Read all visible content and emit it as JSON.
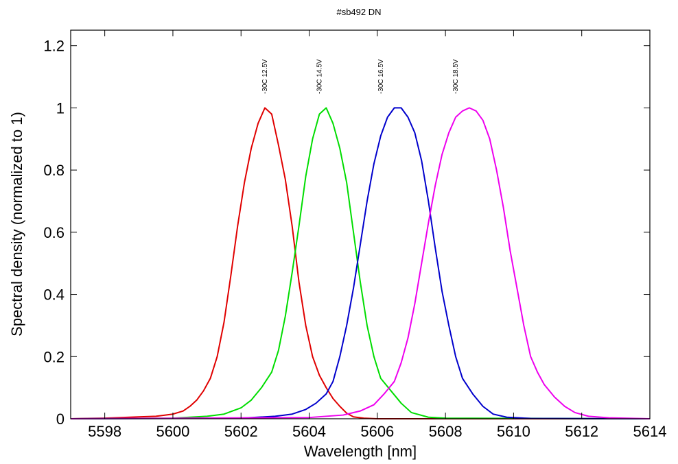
{
  "chart_data": {
    "type": "line",
    "title": "#sb492 DN",
    "xlabel": "Wavelength [nm]",
    "ylabel": "Spectral density (normalized to 1)",
    "xlim": [
      5597,
      5614
    ],
    "ylim": [
      0,
      1.25
    ],
    "xticks": [
      {
        "value": 5598,
        "label": "5598"
      },
      {
        "value": 5600,
        "label": "5600"
      },
      {
        "value": 5602,
        "label": "5602"
      },
      {
        "value": 5604,
        "label": "5604"
      },
      {
        "value": 5606,
        "label": "5606"
      },
      {
        "value": 5608,
        "label": "5608"
      },
      {
        "value": 5610,
        "label": "5610"
      },
      {
        "value": 5612,
        "label": "5612"
      },
      {
        "value": 5614,
        "label": "5614"
      }
    ],
    "yticks": [
      {
        "value": 0,
        "label": "0"
      },
      {
        "value": 0.2,
        "label": "0.2"
      },
      {
        "value": 0.4,
        "label": "0.4"
      },
      {
        "value": 0.6,
        "label": "0.6"
      },
      {
        "value": 0.8,
        "label": "0.8"
      },
      {
        "value": 1.0,
        "label": "1"
      },
      {
        "value": 1.2,
        "label": "1.2"
      }
    ],
    "grid": false,
    "series": [
      {
        "name": "-30C 12.5V",
        "color": "#e00000",
        "label_x": 5602.7,
        "points": [
          [
            5597,
            0.0
          ],
          [
            5598,
            0.002
          ],
          [
            5599,
            0.006
          ],
          [
            5599.5,
            0.008
          ],
          [
            5600,
            0.015
          ],
          [
            5600.3,
            0.025
          ],
          [
            5600.5,
            0.04
          ],
          [
            5600.7,
            0.06
          ],
          [
            5600.9,
            0.09
          ],
          [
            5601.1,
            0.13
          ],
          [
            5601.3,
            0.2
          ],
          [
            5601.5,
            0.31
          ],
          [
            5601.7,
            0.46
          ],
          [
            5601.9,
            0.62
          ],
          [
            5602.1,
            0.76
          ],
          [
            5602.3,
            0.87
          ],
          [
            5602.5,
            0.95
          ],
          [
            5602.7,
            1.0
          ],
          [
            5602.9,
            0.98
          ],
          [
            5603.1,
            0.88
          ],
          [
            5603.3,
            0.77
          ],
          [
            5603.5,
            0.62
          ],
          [
            5603.7,
            0.44
          ],
          [
            5603.9,
            0.3
          ],
          [
            5604.1,
            0.2
          ],
          [
            5604.3,
            0.14
          ],
          [
            5604.5,
            0.1
          ],
          [
            5604.7,
            0.065
          ],
          [
            5604.9,
            0.04
          ],
          [
            5605.1,
            0.018
          ],
          [
            5605.3,
            0.006
          ],
          [
            5605.6,
            0.002
          ],
          [
            5606,
            0.0
          ],
          [
            5614,
            0.0
          ]
        ]
      },
      {
        "name": "-30C 14.5V",
        "color": "#00dd00",
        "label_x": 5604.3,
        "points": [
          [
            5597,
            0.0
          ],
          [
            5600,
            0.002
          ],
          [
            5601,
            0.008
          ],
          [
            5601.5,
            0.015
          ],
          [
            5602,
            0.035
          ],
          [
            5602.3,
            0.06
          ],
          [
            5602.6,
            0.1
          ],
          [
            5602.9,
            0.15
          ],
          [
            5603.1,
            0.22
          ],
          [
            5603.3,
            0.33
          ],
          [
            5603.5,
            0.47
          ],
          [
            5603.7,
            0.62
          ],
          [
            5603.9,
            0.78
          ],
          [
            5604.1,
            0.9
          ],
          [
            5604.3,
            0.98
          ],
          [
            5604.5,
            1.0
          ],
          [
            5604.7,
            0.95
          ],
          [
            5604.9,
            0.87
          ],
          [
            5605.1,
            0.76
          ],
          [
            5605.3,
            0.6
          ],
          [
            5605.5,
            0.44
          ],
          [
            5605.7,
            0.3
          ],
          [
            5605.9,
            0.2
          ],
          [
            5606.1,
            0.13
          ],
          [
            5606.4,
            0.09
          ],
          [
            5606.7,
            0.05
          ],
          [
            5607,
            0.02
          ],
          [
            5607.5,
            0.005
          ],
          [
            5608,
            0.002
          ],
          [
            5614,
            0.0
          ]
        ]
      },
      {
        "name": "-30C 16.5V",
        "color": "#0000cc",
        "label_x": 5606.1,
        "points": [
          [
            5597,
            0.0
          ],
          [
            5602,
            0.002
          ],
          [
            5603,
            0.008
          ],
          [
            5603.5,
            0.015
          ],
          [
            5603.9,
            0.03
          ],
          [
            5604.2,
            0.05
          ],
          [
            5604.5,
            0.08
          ],
          [
            5604.7,
            0.12
          ],
          [
            5604.9,
            0.2
          ],
          [
            5605.1,
            0.3
          ],
          [
            5605.3,
            0.42
          ],
          [
            5605.5,
            0.56
          ],
          [
            5605.7,
            0.7
          ],
          [
            5605.9,
            0.82
          ],
          [
            5606.1,
            0.91
          ],
          [
            5606.3,
            0.97
          ],
          [
            5606.5,
            1.0
          ],
          [
            5606.7,
            1.0
          ],
          [
            5606.9,
            0.97
          ],
          [
            5607.1,
            0.92
          ],
          [
            5607.3,
            0.83
          ],
          [
            5607.5,
            0.7
          ],
          [
            5607.7,
            0.55
          ],
          [
            5607.9,
            0.41
          ],
          [
            5608.1,
            0.3
          ],
          [
            5608.3,
            0.2
          ],
          [
            5608.5,
            0.13
          ],
          [
            5608.8,
            0.08
          ],
          [
            5609.1,
            0.04
          ],
          [
            5609.4,
            0.015
          ],
          [
            5609.8,
            0.005
          ],
          [
            5610.5,
            0.001
          ],
          [
            5614,
            0.0
          ]
        ]
      },
      {
        "name": "-30C 18.5V",
        "color": "#ee00ee",
        "label_x": 5608.3,
        "points": [
          [
            5597,
            0.0
          ],
          [
            5604,
            0.004
          ],
          [
            5605,
            0.012
          ],
          [
            5605.5,
            0.025
          ],
          [
            5605.9,
            0.045
          ],
          [
            5606.2,
            0.08
          ],
          [
            5606.5,
            0.12
          ],
          [
            5606.7,
            0.18
          ],
          [
            5606.9,
            0.26
          ],
          [
            5607.1,
            0.37
          ],
          [
            5607.3,
            0.5
          ],
          [
            5607.5,
            0.63
          ],
          [
            5607.7,
            0.75
          ],
          [
            5607.9,
            0.85
          ],
          [
            5608.1,
            0.92
          ],
          [
            5608.3,
            0.97
          ],
          [
            5608.5,
            0.99
          ],
          [
            5608.7,
            1.0
          ],
          [
            5608.9,
            0.99
          ],
          [
            5609.1,
            0.96
          ],
          [
            5609.3,
            0.9
          ],
          [
            5609.5,
            0.8
          ],
          [
            5609.7,
            0.68
          ],
          [
            5609.9,
            0.54
          ],
          [
            5610.1,
            0.42
          ],
          [
            5610.3,
            0.3
          ],
          [
            5610.5,
            0.2
          ],
          [
            5610.7,
            0.15
          ],
          [
            5610.9,
            0.11
          ],
          [
            5611.2,
            0.07
          ],
          [
            5611.5,
            0.04
          ],
          [
            5611.8,
            0.02
          ],
          [
            5612.2,
            0.008
          ],
          [
            5612.8,
            0.003
          ],
          [
            5614,
            0.0
          ]
        ]
      }
    ]
  }
}
